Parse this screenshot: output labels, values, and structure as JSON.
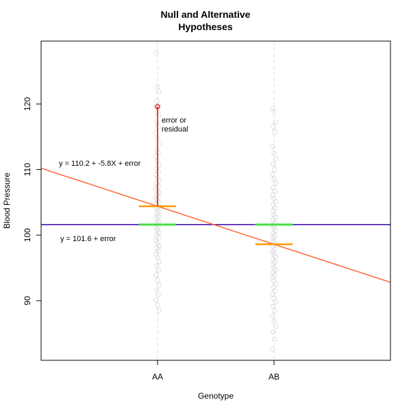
{
  "chart_data": {
    "type": "scatter",
    "title": [
      "Null and Alternative",
      "Hypotheses"
    ],
    "xlabel": "Genotype",
    "ylabel": "Blood Pressure",
    "categories": [
      "AA",
      "AB"
    ],
    "xlim": [
      0,
      3
    ],
    "ylim": [
      80.9,
      129.6
    ],
    "yticks": [
      90,
      100,
      110,
      120
    ],
    "grid": false,
    "colors": {
      "points": "#dddddd",
      "guide": "#dddddd",
      "null_line": "#3300aa",
      "alt_line": "#ff6633",
      "group_mean": "#ff9900",
      "grand_mean": "#44dd44",
      "residual": "#ee0000"
    },
    "series": [
      {
        "category": "AA",
        "x": 1,
        "values": [
          127.8,
          122.6,
          121.9,
          120.5,
          119.8,
          119.6,
          118.8,
          118.3,
          117.2,
          116.5,
          115.6,
          114.7,
          113.8,
          113.0,
          112.6,
          112.0,
          111.4,
          110.7,
          110.1,
          109.7,
          109.2,
          108.8,
          108.3,
          107.9,
          107.5,
          107.1,
          106.8,
          106.5,
          106.2,
          105.9,
          105.6,
          105.3,
          105.0,
          104.7,
          104.4,
          104.1,
          103.8,
          103.5,
          103.2,
          102.9,
          102.6,
          102.3,
          102.0,
          101.7,
          101.4,
          101.1,
          100.8,
          100.4,
          100.0,
          99.6,
          99.2,
          98.8,
          98.4,
          98.0,
          97.6,
          97.1,
          96.6,
          96.0,
          95.3,
          94.6,
          93.9,
          93.1,
          92.4,
          91.6,
          90.9,
          90.1,
          89.3,
          88.5
        ]
      },
      {
        "category": "AB",
        "x": 2,
        "values": [
          119.3,
          118.8,
          117.2,
          116.5,
          115.7,
          113.5,
          112.5,
          111.6,
          110.8,
          110.0,
          109.3,
          108.6,
          107.9,
          107.3,
          106.7,
          106.1,
          105.6,
          105.1,
          104.6,
          104.1,
          103.6,
          103.1,
          102.7,
          102.3,
          101.9,
          101.5,
          101.1,
          100.7,
          100.3,
          99.9,
          99.5,
          99.1,
          98.7,
          98.3,
          97.9,
          97.5,
          97.1,
          96.7,
          96.3,
          95.9,
          95.5,
          95.1,
          94.7,
          94.3,
          93.9,
          93.5,
          93.0,
          92.5,
          92.0,
          91.5,
          91.0,
          90.4,
          89.8,
          89.1,
          88.4,
          87.7,
          86.9,
          86.1,
          85.2,
          84.1,
          82.6
        ]
      }
    ],
    "null_model": {
      "intercept": 101.6,
      "label": "y = 101.6 + error"
    },
    "alt_model": {
      "intercept": 110.2,
      "slope": -5.8,
      "label": "y = 110.2 + -5.8X + error"
    },
    "group_means": [
      {
        "category": "AA",
        "value": 104.4
      },
      {
        "category": "AB",
        "value": 98.6
      }
    ],
    "grand_mean": 101.6,
    "residual_point": {
      "category": "AA",
      "value": 119.6
    },
    "residual_label": [
      "error or",
      "residual"
    ]
  }
}
